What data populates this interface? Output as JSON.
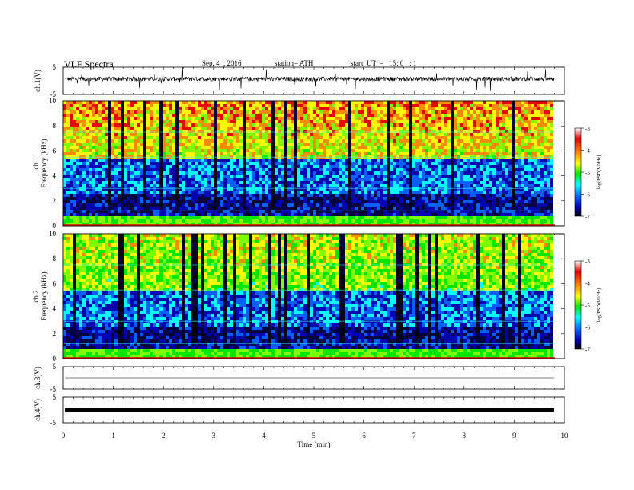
{
  "header": {
    "title": "VLF  Spectra",
    "date": "Sep. 4  , 2016",
    "station": "station= ATH",
    "start": "start  UT  =   15: 0   : 1"
  },
  "x_axis": {
    "label": "Time  (min)",
    "ticks": [
      "0",
      "1",
      "2",
      "3",
      "4",
      "5",
      "6",
      "7",
      "8",
      "9",
      "10"
    ]
  },
  "colorbar": {
    "label": "log(PSD(V²/Hz)",
    "ticks": [
      "-3",
      "-4",
      "-5",
      "-6",
      "-7"
    ],
    "colors": [
      "#ffffff",
      "#e60000",
      "#ff8c00",
      "#ffff00",
      "#80ff00",
      "#00e600",
      "#00ffff",
      "#0080ff",
      "#0000d0",
      "#000040",
      "#000000"
    ]
  },
  "chart_data": [
    {
      "type": "line",
      "title": "",
      "ylabel": "ch.1(V)",
      "yticks": [
        "5",
        "-5"
      ],
      "ylim": [
        -5,
        5
      ],
      "xlim": [
        0,
        10
      ],
      "series": [
        {
          "description": "noisy waveform centered near 0.7 V with frequent spikes",
          "baseline": 0.7
        }
      ]
    },
    {
      "type": "heatmap",
      "title": "",
      "ylabel": "ch.1\nFrequency  (kHz)",
      "yticks": [
        "10",
        "8",
        "6",
        "4",
        "2",
        "0"
      ],
      "ylim": [
        0,
        10
      ],
      "xlim": [
        0,
        9.8
      ],
      "zlabel": "log(PSD(V²/Hz)",
      "zlim": [
        -7,
        -3
      ]
    },
    {
      "type": "heatmap",
      "title": "",
      "ylabel": "ch.2\nFrequency  (kHz)",
      "yticks": [
        "10",
        "8",
        "6",
        "4",
        "2",
        "0"
      ],
      "ylim": [
        0,
        10
      ],
      "xlim": [
        0,
        9.8
      ],
      "zlabel": "log(PSD(V²/Hz)",
      "zlim": [
        -7,
        -3
      ]
    },
    {
      "type": "line",
      "title": "",
      "ylabel": "ch.3(V)",
      "yticks": [
        "5",
        "-5"
      ],
      "ylim": [
        -5,
        5
      ],
      "xlim": [
        0,
        10
      ],
      "series": [
        {
          "description": "flat line",
          "value": 0
        }
      ]
    },
    {
      "type": "line",
      "title": "",
      "ylabel": "ch.4(V)",
      "yticks": [
        "5",
        "-5"
      ],
      "ylim": [
        -5,
        5
      ],
      "xlim": [
        0,
        10
      ],
      "series": [
        {
          "description": "thick flat line",
          "value": 0
        }
      ]
    }
  ]
}
